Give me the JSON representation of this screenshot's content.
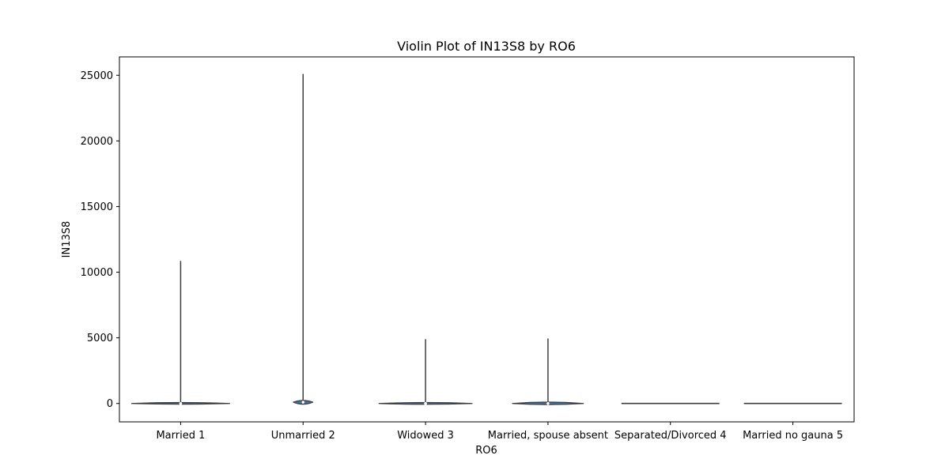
{
  "chart_data": {
    "type": "violin",
    "title": "Violin Plot of IN13S8 by RO6",
    "xlabel": "RO6",
    "ylabel": "IN13S8",
    "ylim": [
      -1400,
      26400
    ],
    "yticks": [
      0,
      5000,
      10000,
      15000,
      20000,
      25000
    ],
    "ytick_labels": [
      "0",
      "5000",
      "10000",
      "15000",
      "20000",
      "25000"
    ],
    "grid": false,
    "violin_color": "#3a75af",
    "edge_color": "#3f3f3f",
    "categories": [
      "Married 1",
      "Unmarried 2",
      "Widowed 3",
      "Married, spouse absent",
      "Separated/Divorced 4",
      "Married no gauna 5"
    ],
    "violins": [
      {
        "category": "Married 1",
        "min": 0,
        "max": 10850,
        "q1": 0,
        "median": 0,
        "q3": 60,
        "density_half_width": 0.4,
        "density_top": 80,
        "density_bottom": -40
      },
      {
        "category": "Unmarried 2",
        "min": 0,
        "max": 25100,
        "q1": 0,
        "median": 100,
        "q3": 250,
        "density_half_width": 0.08,
        "density_top": 300,
        "density_bottom": -150
      },
      {
        "category": "Widowed 3",
        "min": 0,
        "max": 4900,
        "q1": 0,
        "median": 0,
        "q3": 60,
        "density_half_width": 0.38,
        "density_top": 80,
        "density_bottom": -60
      },
      {
        "category": "Married, spouse absent",
        "min": 0,
        "max": 4950,
        "q1": 0,
        "median": 0,
        "q3": 100,
        "density_half_width": 0.29,
        "density_top": 150,
        "density_bottom": -100
      },
      {
        "category": "Separated/Divorced 4",
        "min": 0,
        "max": 0,
        "q1": 0,
        "median": 0,
        "q3": 0,
        "density_half_width": 0.4,
        "density_top": 0,
        "density_bottom": 0
      },
      {
        "category": "Married no gauna 5",
        "min": 0,
        "max": 0,
        "q1": 0,
        "median": 0,
        "q3": 0,
        "density_half_width": 0.4,
        "density_top": 0,
        "density_bottom": 0
      }
    ]
  }
}
